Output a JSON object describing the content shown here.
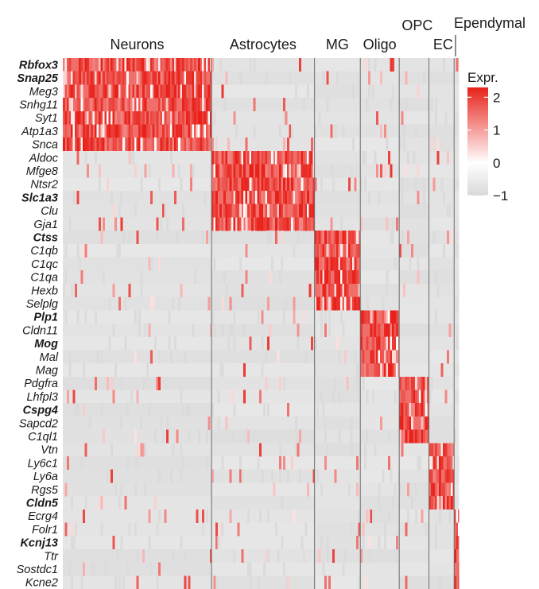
{
  "chart_data": {
    "type": "heatmap",
    "title": "",
    "xlabel": "",
    "ylabel": "",
    "cell_groups": [
      "Neurons",
      "Astrocytes",
      "MG",
      "Oligo",
      "OPC",
      "EC",
      "Ependymal"
    ],
    "cell_group_fraction": [
      0.325,
      0.225,
      0.1,
      0.085,
      0.065,
      0.055,
      0.01
    ],
    "genes": [
      "Rbfox3",
      "Snap25",
      "Meg3",
      "Snhg11",
      "Syt1",
      "Atp1a3",
      "Snca",
      "Aldoc",
      "Mfge8",
      "Ntsr2",
      "Slc1a3",
      "Clu",
      "Gja1",
      "Ctss",
      "C1qb",
      "C1qc",
      "C1qa",
      "Hexb",
      "Selplg",
      "Plp1",
      "Cldn11",
      "Mog",
      "Mal",
      "Mag",
      "Pdgfra",
      "Lhfpl3",
      "Cspg4",
      "Sapcd2",
      "C1ql1",
      "Vtn",
      "Ly6c1",
      "Ly6a",
      "Rgs5",
      "Cldn5",
      "Ecrg4",
      "Folr1",
      "Kcnj13",
      "Ttr",
      "Sostdc1",
      "Kcne2"
    ],
    "bold_genes": [
      "Rbfox3",
      "Snap25",
      "Slc1a3",
      "Ctss",
      "Plp1",
      "Mog",
      "Cspg4",
      "Cldn5",
      "Kcnj13"
    ],
    "gene_marker_group": [
      0,
      0,
      0,
      0,
      0,
      0,
      0,
      1,
      1,
      1,
      1,
      1,
      1,
      2,
      2,
      2,
      2,
      2,
      2,
      3,
      3,
      3,
      3,
      3,
      4,
      4,
      4,
      4,
      4,
      5,
      5,
      5,
      5,
      5,
      6,
      6,
      6,
      6,
      6,
      6
    ],
    "color_scale": {
      "min": -1,
      "max": 2.3,
      "low": "#d9d9d9",
      "mid": "#ffffff",
      "high": "#e8221b"
    },
    "legend": {
      "title": "Expr.",
      "ticks": [
        2,
        1,
        0,
        -1
      ],
      "tick_labels": [
        "2",
        "1",
        "0",
        "−1"
      ],
      "placement": "right"
    },
    "values_note": ""
  }
}
